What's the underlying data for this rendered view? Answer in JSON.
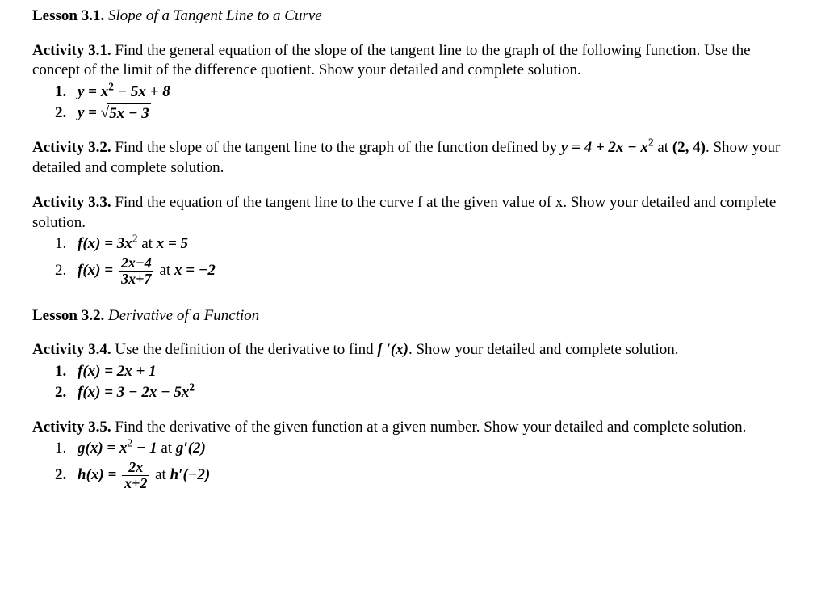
{
  "lesson31": {
    "label": "Lesson 3.1.",
    "name": "Slope of a Tangent Line to a Curve"
  },
  "act31": {
    "label": "Activity 3.1.",
    "text_a": "Find the general equation of the slope of the tangent line to the graph of the following function. Use the concept of the limit of the difference quotient. Show your detailed and complete solution.",
    "item1_num": "1.",
    "item1_y": "y",
    "item1_eq": " = ",
    "item1_x2": "x",
    "item1_exp2": "2",
    "item1_rest": " − 5x + 8",
    "item2_num": "2.",
    "item2_y": "y",
    "item2_eq": " = ",
    "item2_sqrt_body": "5x − 3"
  },
  "act32": {
    "label": "Activity 3.2.",
    "text_a": "Find the slope of the tangent line to the graph of the function defined by ",
    "fn_y": "y",
    "fn_eq": " = 4 + 2x − x",
    "fn_exp2": "2",
    "text_b": " at ",
    "point": "(2, 4)",
    "text_c": ". Show your detailed and complete solution."
  },
  "act33": {
    "label": "Activity 3.3.",
    "text_a": "Find the equation of the tangent line to the curve f at the given value of x. Show your detailed and complete solution.",
    "item1_num": "1.",
    "item1_fx": "f(x) = 3x",
    "item1_exp2": "2",
    "item1_at": " at ",
    "item1_xval": "x = 5",
    "item2_num": "2.",
    "item2_fx": "f(x) = ",
    "item2_frac_num": "2x−4",
    "item2_frac_den": "3x+7",
    "item2_at": " at ",
    "item2_xval": "x = −2"
  },
  "lesson32": {
    "label": "Lesson 3.2.",
    "name": "Derivative of a Function"
  },
  "act34": {
    "label": "Activity 3.4.",
    "text_a": "Use the definition of the derivative to find ",
    "fprime": "f ′(x)",
    "text_b": ". Show your detailed and complete solution.",
    "item1_num": "1.",
    "item1_fx": "f(x) = 2x + 1",
    "item2_num": "2.",
    "item2_fx": "f(x) = 3 − 2x − 5x",
    "item2_exp2": "2"
  },
  "act35": {
    "label": "Activity 3.5.",
    "text_a": "Find the derivative of the given function at a given number. Show your detailed and complete solution.",
    "item1_num": "1.",
    "item1_gx": "g(x) = x",
    "item1_exp2": "2",
    "item1_rest": " − 1",
    "item1_at": " at ",
    "item1_gprime": "g′(2)",
    "item2_num": "2.",
    "item2_hx": "h(x) = ",
    "item2_frac_num": "2x",
    "item2_frac_den": "x+2",
    "item2_at": " at ",
    "item2_hprime": "h′(−2)"
  }
}
